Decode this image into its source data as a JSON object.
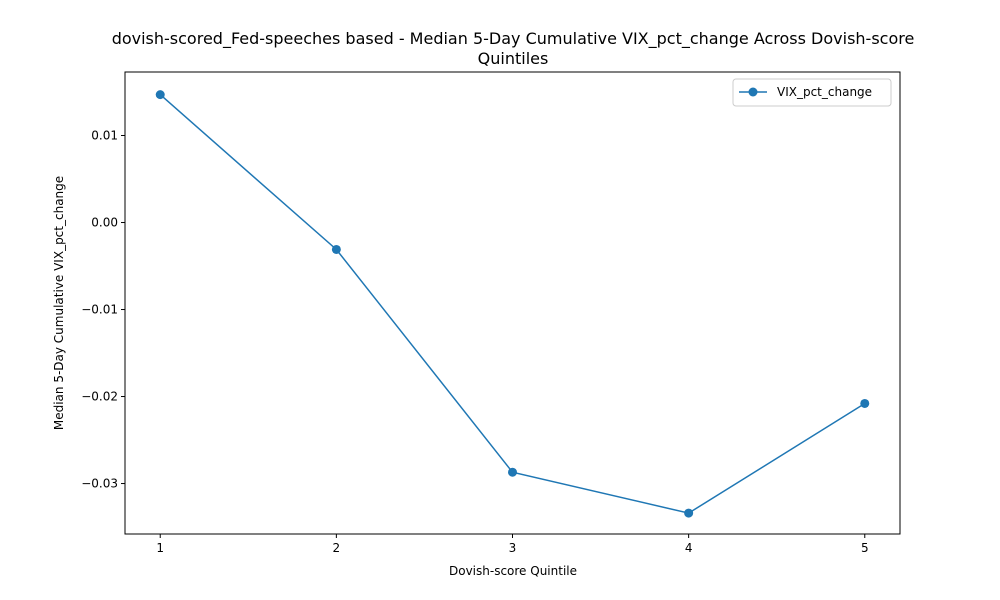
{
  "chart_data": {
    "type": "line",
    "title_line1": "dovish-scored_Fed-speeches based - Median 5-Day Cumulative VIX_pct_change Across Dovish-score",
    "title_line2": "Quintiles",
    "xlabel": "Dovish-score Quintile",
    "ylabel": "Median 5-Day Cumulative VIX_pct_change",
    "x": [
      1,
      2,
      3,
      4,
      5
    ],
    "xlim": [
      0.8,
      5.2
    ],
    "ylim": [
      -0.0358,
      0.0173
    ],
    "x_ticks": [
      1,
      2,
      3,
      4,
      5
    ],
    "y_ticks": [
      0.01,
      0.0,
      -0.01,
      -0.02,
      -0.03
    ],
    "y_tick_labels": [
      "0.01",
      "0.00",
      "−0.01",
      "−0.02",
      "−0.03"
    ],
    "grid": false,
    "legend_position": "top-right",
    "series": [
      {
        "name": "VIX_pct_change",
        "color": "#1f77b4",
        "marker": "circle",
        "values": [
          0.0147,
          -0.0031,
          -0.0287,
          -0.0334,
          -0.0208
        ]
      }
    ]
  }
}
